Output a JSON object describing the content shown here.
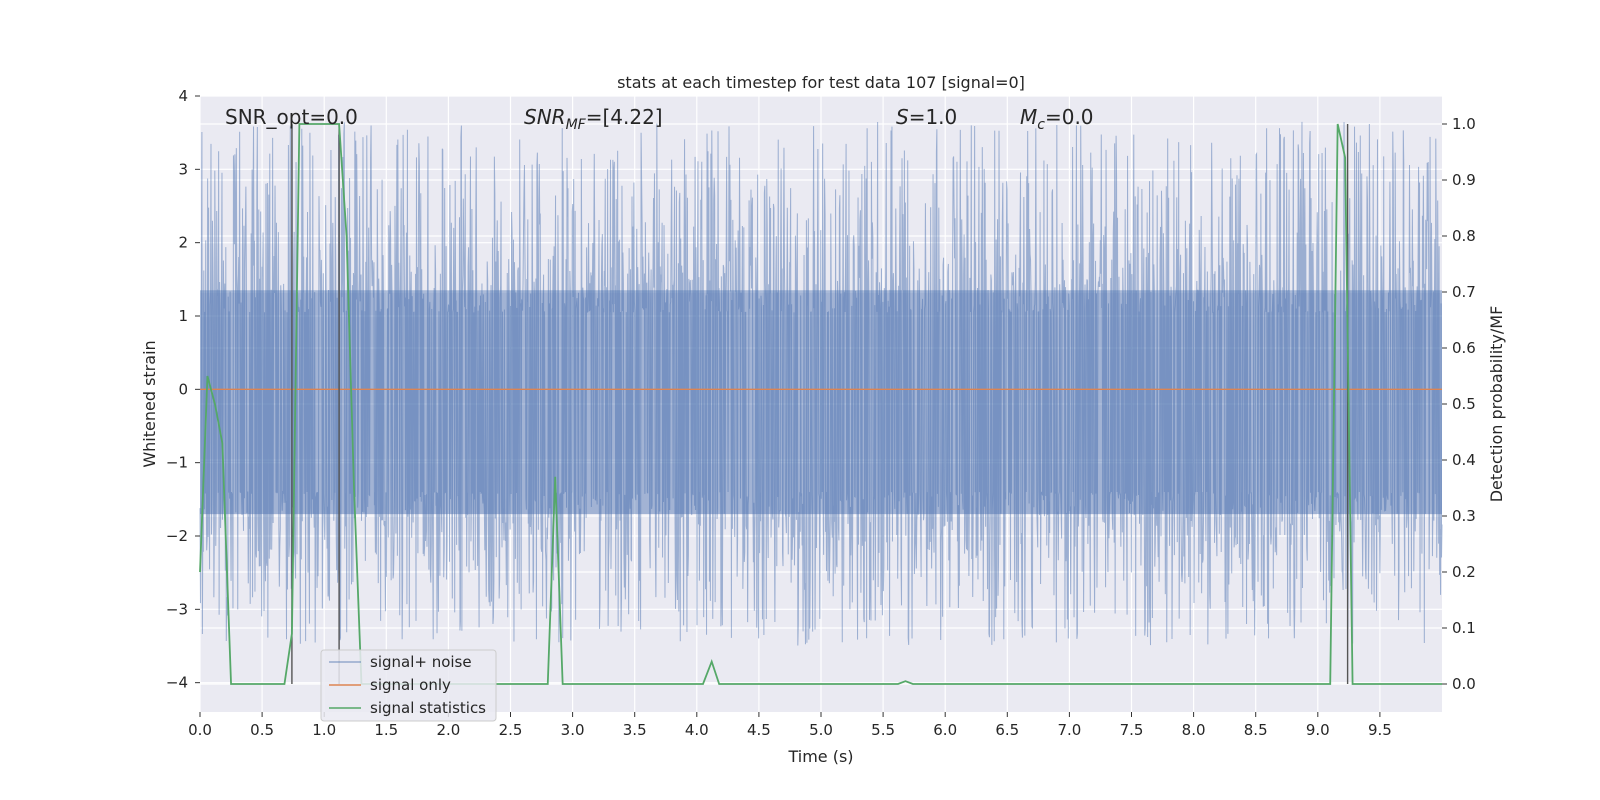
{
  "chart_data": {
    "type": "line",
    "title": "stats at each timestep for test data 107 [signal=0]",
    "xlabel": "Time (s)",
    "ylabel": "Whitened strain",
    "y2label": "Detection probability/MF",
    "xlim": [
      0.0,
      10.0
    ],
    "ylim": [
      -4.4,
      4.0
    ],
    "y2lim": [
      -0.05,
      1.05
    ],
    "x_ticks": [
      "0.0",
      "0.5",
      "1.0",
      "1.5",
      "2.0",
      "2.5",
      "3.0",
      "3.5",
      "4.0",
      "4.5",
      "5.0",
      "5.5",
      "6.0",
      "6.5",
      "7.0",
      "7.5",
      "8.0",
      "8.5",
      "9.0",
      "9.5"
    ],
    "y_ticks": [
      "4",
      "3",
      "2",
      "1",
      "0",
      "−1",
      "−2",
      "−3",
      "−4"
    ],
    "y2_ticks": [
      "1.0",
      "0.9",
      "0.8",
      "0.7",
      "0.6",
      "0.5",
      "0.4",
      "0.3",
      "0.2",
      "0.1",
      "0.0"
    ],
    "grid": true,
    "annotations": {
      "snr_opt": "SNR_opt=0.0",
      "snr_mf_label": "SNR",
      "snr_mf_sub": "MF",
      "snr_mf_value": "=[4.22]",
      "s_label": "S",
      "s_value": "=1.0",
      "mc_label": "M",
      "mc_sub": "c",
      "mc_value": "=0.0"
    },
    "legend": {
      "placement": "lower-left",
      "entries": [
        "signal+ noise",
        "signal only",
        "signal statistics"
      ]
    },
    "series": [
      {
        "name": "signal+ noise",
        "axis": "left",
        "color": "#4c72b0",
        "noise_envelope": {
          "core_low": -1.7,
          "core_high": 1.35,
          "peak_max": 3.65,
          "peak_min": -3.5
        },
        "vertical_lines_x": [
          0.74,
          1.12,
          9.24
        ]
      },
      {
        "name": "signal only",
        "axis": "left",
        "color": "#dd8452",
        "x": [
          0.0,
          10.0
        ],
        "y": [
          0.0,
          0.0
        ]
      },
      {
        "name": "signal statistics",
        "axis": "right",
        "color": "#55a868",
        "x": [
          0.0,
          0.06,
          0.12,
          0.18,
          0.25,
          0.3,
          0.68,
          0.74,
          0.8,
          0.86,
          0.92,
          1.12,
          1.18,
          1.24,
          1.3,
          2.8,
          2.86,
          2.92,
          4.05,
          4.12,
          4.18,
          5.62,
          5.68,
          5.74,
          9.1,
          9.16,
          9.22,
          9.28,
          9.34,
          10.0
        ],
        "y": [
          0.2,
          0.55,
          0.5,
          0.43,
          0.0,
          0.0,
          0.0,
          0.09,
          1.0,
          1.0,
          1.0,
          1.0,
          0.8,
          0.35,
          0.0,
          0.0,
          0.37,
          0.0,
          0.0,
          0.04,
          0.0,
          0.0,
          0.005,
          0.0,
          0.0,
          1.0,
          0.94,
          0.0,
          0.0,
          0.0
        ]
      }
    ]
  },
  "colors": {
    "plot_bg": "#eaeaf2",
    "grid": "#ffffff",
    "dark_lines": "#555555"
  }
}
